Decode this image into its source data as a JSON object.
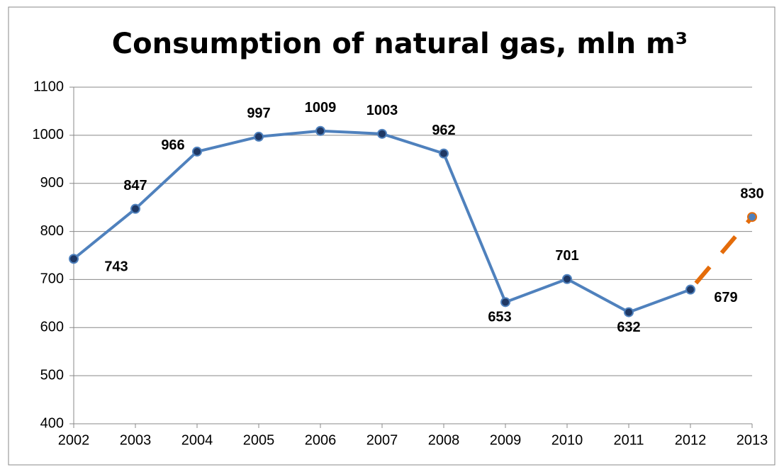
{
  "chart_data": {
    "type": "line",
    "title": "Consumption of natural gas, mln m³",
    "categories": [
      "2002",
      "2003",
      "2004",
      "2005",
      "2006",
      "2007",
      "2008",
      "2009",
      "2010",
      "2011",
      "2012",
      "2013"
    ],
    "series": [
      {
        "color": "#4f81bd",
        "style": "solid",
        "values": [
          743,
          847,
          966,
          997,
          1009,
          1003,
          962,
          653,
          701,
          632,
          679,
          null
        ]
      },
      {
        "color": "#e46c0a",
        "style": "dashed",
        "values": [
          null,
          null,
          null,
          null,
          null,
          null,
          null,
          null,
          null,
          null,
          679,
          830
        ]
      }
    ],
    "ylim": [
      400,
      1100
    ],
    "yticks": [
      400,
      500,
      600,
      700,
      800,
      900,
      1000,
      1100
    ],
    "grid": true,
    "data_labels": true
  }
}
